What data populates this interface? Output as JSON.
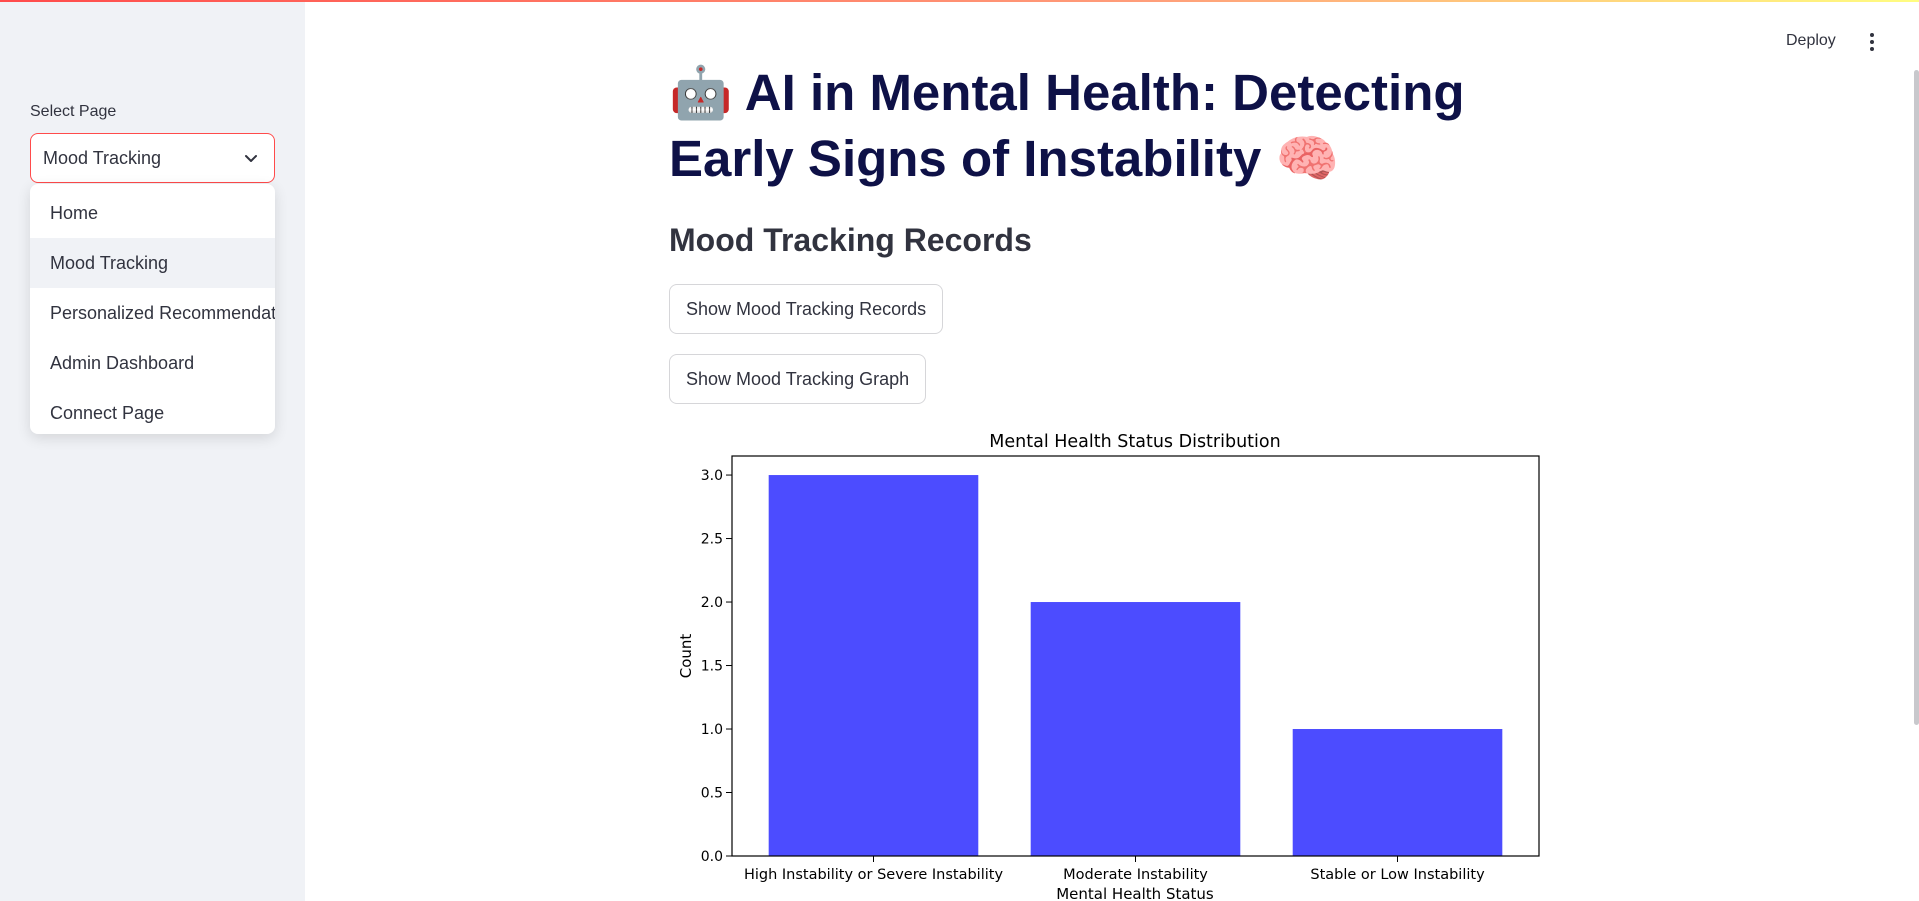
{
  "sidebar": {
    "select_label": "Select Page",
    "selected": "Mood Tracking",
    "options": [
      "Home",
      "Mood Tracking",
      "Personalized Recommendations",
      "Admin Dashboard",
      "Connect Page"
    ]
  },
  "header": {
    "deploy_label": "Deploy"
  },
  "main": {
    "title": "🤖 AI in Mental Health: Detecting Early Signs of Instability 🧠",
    "subheader": "Mood Tracking Records",
    "button_records": "Show Mood Tracking Records",
    "button_graph": "Show Mood Tracking Graph"
  },
  "chart_data": {
    "type": "bar",
    "title": "Mental Health Status Distribution",
    "xlabel": "Mental Health Status",
    "ylabel": "Count",
    "categories": [
      "High Instability or Severe Instability",
      "Moderate Instability",
      "Stable or Low Instability"
    ],
    "values": [
      3,
      2,
      1
    ],
    "ylim": [
      0,
      3.15
    ],
    "yticks": [
      "0.0",
      "0.5",
      "1.0",
      "1.5",
      "2.0",
      "2.5",
      "3.0"
    ],
    "bar_color": "#4c4cff",
    "grid": false
  }
}
